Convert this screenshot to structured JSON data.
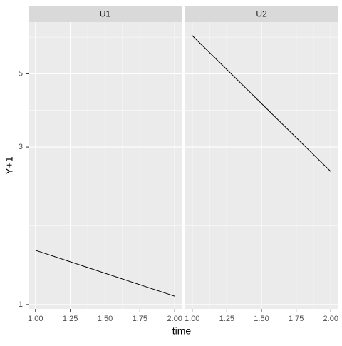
{
  "chart_data": {
    "type": "line",
    "x_label": "time",
    "y_label": "Y+1",
    "y_log": true,
    "grid": true,
    "color": "#000000",
    "xlim": [
      0.95,
      2.05
    ],
    "xticks": [
      {
        "value": 1,
        "label": "1.00"
      },
      {
        "value": 1.25,
        "label": "1.25"
      },
      {
        "value": 1.5,
        "label": "1.50"
      },
      {
        "value": 1.75,
        "label": "1.75"
      },
      {
        "value": 2,
        "label": "2.00"
      }
    ],
    "ylim": [
      0.97,
      7.17
    ],
    "yticks": [
      1,
      3,
      5
    ],
    "panels": [
      {
        "title": "U1",
        "x": [
          1,
          2
        ],
        "values": [
          1.46,
          1.06
        ]
      },
      {
        "title": "U2",
        "x": [
          1,
          2
        ],
        "values": [
          6.53,
          2.53
        ]
      }
    ]
  }
}
